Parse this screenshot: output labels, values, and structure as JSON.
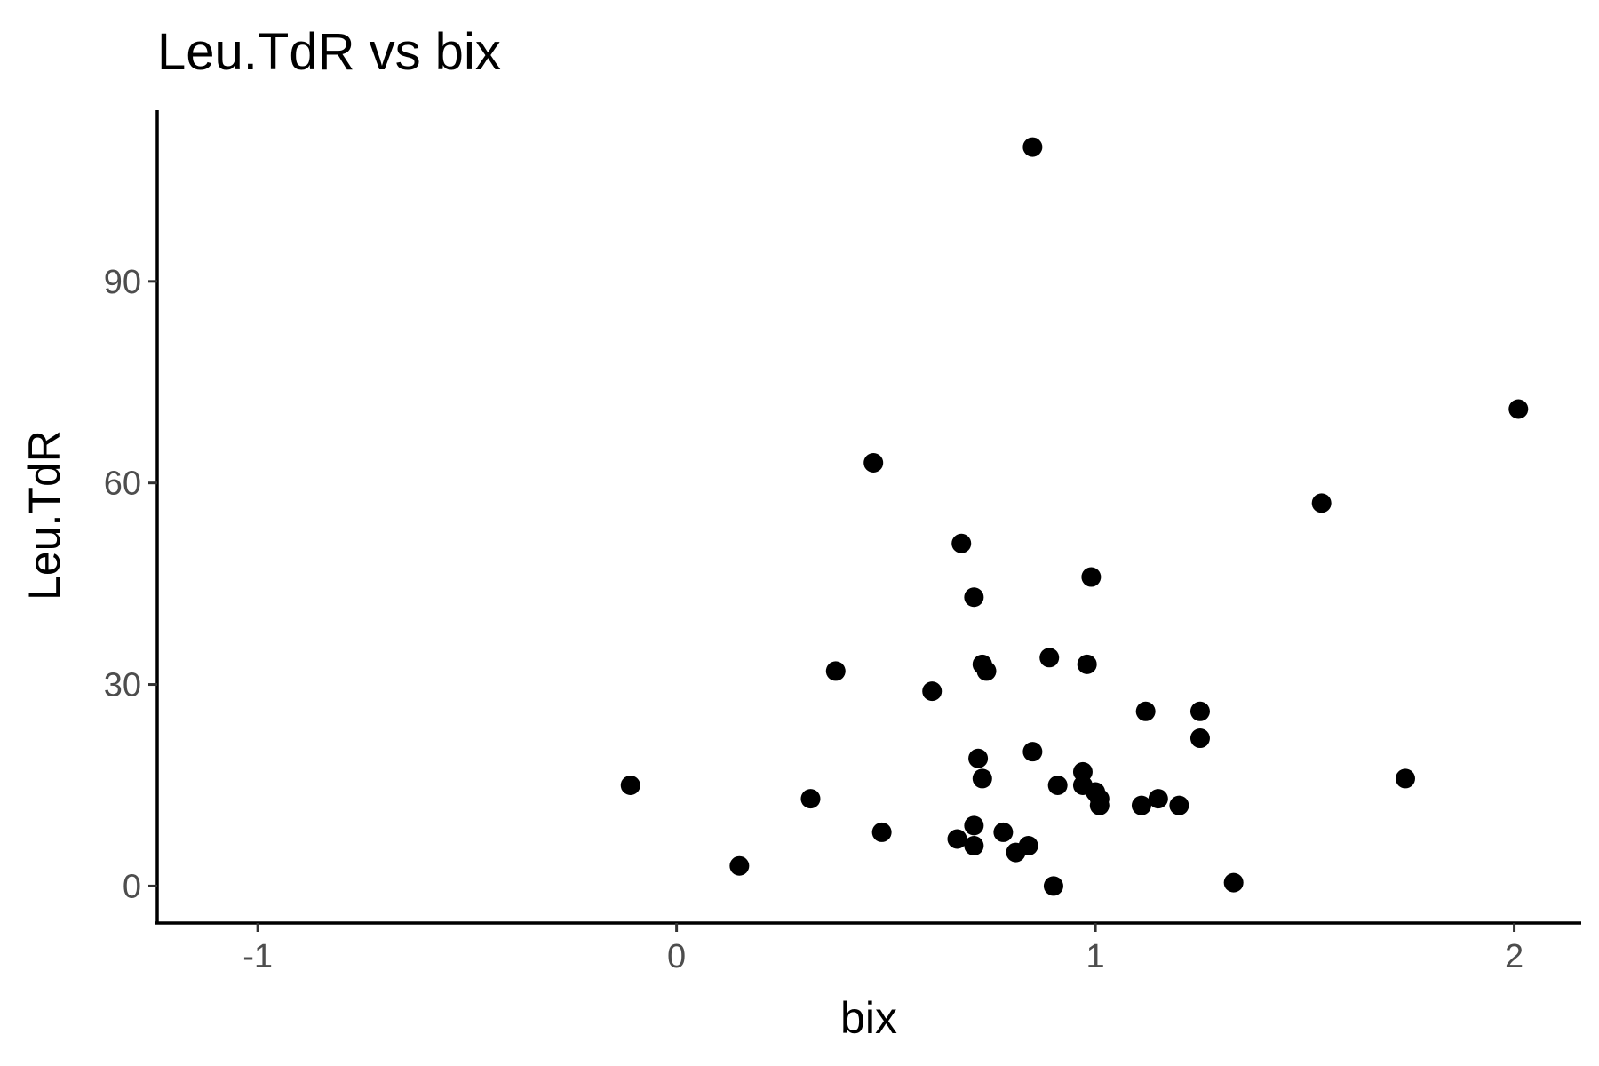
{
  "chart_data": {
    "type": "scatter",
    "title": "Leu.TdR vs bix",
    "xlabel": "bix",
    "ylabel": "Leu.TdR",
    "xlim": [
      -1.24,
      2.16
    ],
    "ylim": [
      -5.5,
      115.5
    ],
    "xticks": [
      -1,
      0,
      1,
      2
    ],
    "xtick_labels": [
      "-1",
      "0",
      "1",
      "2"
    ],
    "yticks": [
      0,
      30,
      60,
      90
    ],
    "ytick_labels": [
      "0",
      "30",
      "60",
      "90"
    ],
    "grid": false,
    "legend": "none",
    "point_color": "#000000",
    "points": [
      {
        "x": -0.11,
        "y": 15
      },
      {
        "x": 0.15,
        "y": 3
      },
      {
        "x": 0.32,
        "y": 13
      },
      {
        "x": 0.38,
        "y": 32
      },
      {
        "x": 0.47,
        "y": 63
      },
      {
        "x": 0.49,
        "y": 8
      },
      {
        "x": 0.61,
        "y": 29
      },
      {
        "x": 0.67,
        "y": 7
      },
      {
        "x": 0.68,
        "y": 51
      },
      {
        "x": 0.71,
        "y": 9
      },
      {
        "x": 0.71,
        "y": 43
      },
      {
        "x": 0.71,
        "y": 6
      },
      {
        "x": 0.72,
        "y": 19
      },
      {
        "x": 0.73,
        "y": 16
      },
      {
        "x": 0.73,
        "y": 33
      },
      {
        "x": 0.74,
        "y": 32
      },
      {
        "x": 0.78,
        "y": 8
      },
      {
        "x": 0.81,
        "y": 5
      },
      {
        "x": 0.84,
        "y": 6
      },
      {
        "x": 0.85,
        "y": 20
      },
      {
        "x": 0.85,
        "y": 110
      },
      {
        "x": 0.89,
        "y": 34
      },
      {
        "x": 0.9,
        "y": 0
      },
      {
        "x": 0.91,
        "y": 15
      },
      {
        "x": 0.97,
        "y": 17
      },
      {
        "x": 0.97,
        "y": 15
      },
      {
        "x": 0.98,
        "y": 33
      },
      {
        "x": 0.99,
        "y": 46
      },
      {
        "x": 1.0,
        "y": 14
      },
      {
        "x": 1.01,
        "y": 13
      },
      {
        "x": 1.01,
        "y": 12
      },
      {
        "x": 1.11,
        "y": 12
      },
      {
        "x": 1.12,
        "y": 26
      },
      {
        "x": 1.15,
        "y": 13
      },
      {
        "x": 1.2,
        "y": 12
      },
      {
        "x": 1.25,
        "y": 26
      },
      {
        "x": 1.25,
        "y": 22
      },
      {
        "x": 1.33,
        "y": 0.5
      },
      {
        "x": 1.54,
        "y": 57
      },
      {
        "x": 1.74,
        "y": 16
      },
      {
        "x": 2.01,
        "y": 71
      }
    ]
  }
}
